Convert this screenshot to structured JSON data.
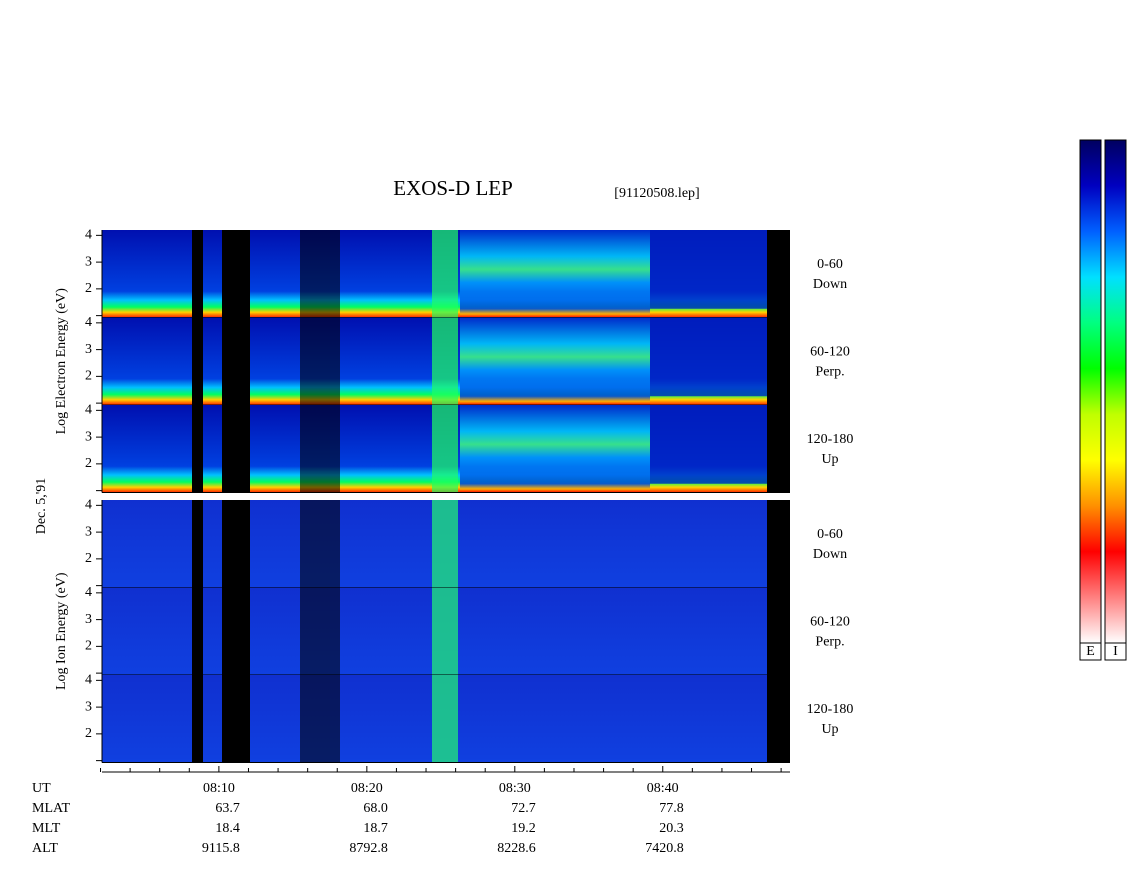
{
  "chart_data": {
    "type": "spectrogram",
    "title": "EXOS-D LEP",
    "file": "[91120508.lep]",
    "date": "Dec. 5,'91",
    "groups": [
      {
        "ylabel": "Log  Electron  Energy (eV)",
        "panels": [
          [
            "0-60",
            "Down"
          ],
          [
            "60-120",
            "Perp."
          ],
          [
            "120-180",
            "Up"
          ]
        ]
      },
      {
        "ylabel": "Log  Ion  Energy (eV)",
        "panels": [
          [
            "0-60",
            "Down"
          ],
          [
            "60-120",
            "Perp."
          ],
          [
            "120-180",
            "Up"
          ]
        ]
      }
    ],
    "ylim": [
      0.93,
      4.2
    ],
    "yticks": [
      2,
      3,
      4
    ],
    "yminorticks": [
      1
    ],
    "xlim": [
      482.1,
      528.6
    ],
    "xticks": [
      {
        "value": 490,
        "label": "08:10"
      },
      {
        "value": 500,
        "label": "08:20"
      },
      {
        "value": 510,
        "label": "08:30"
      },
      {
        "value": 520,
        "label": "08:40"
      }
    ],
    "xminorticks": [
      482,
      484,
      486,
      488,
      492,
      494,
      496,
      498,
      502,
      504,
      506,
      508,
      512,
      514,
      516,
      518,
      522,
      524,
      526,
      528
    ],
    "table": [
      {
        "label": "UT"
      },
      {
        "label": "MLAT",
        "values": [
          "63.7",
          "68.0",
          "72.7",
          "77.8"
        ]
      },
      {
        "label": "MLT",
        "values": [
          "18.4",
          "18.7",
          "19.2",
          "20.3"
        ]
      },
      {
        "label": "ALT",
        "values": [
          "9115.8",
          "8792.8",
          "8228.6",
          "7420.8"
        ]
      }
    ],
    "colorbars": [
      "E",
      "I"
    ],
    "colormap": [
      "#000060",
      "#0000c0",
      "#0060ff",
      "#00e0ff",
      "#00ff80",
      "#00ff00",
      "#c0ff00",
      "#ffff00",
      "#ff9000",
      "#ff0000",
      "#ff8080",
      "#ffffff"
    ]
  }
}
